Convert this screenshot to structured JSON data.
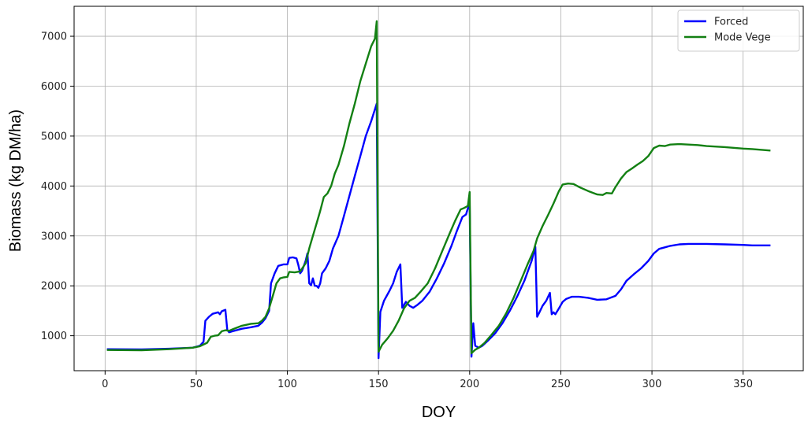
{
  "chart_data": {
    "type": "line",
    "title": "",
    "xlabel": "DOY",
    "ylabel": "Biomass (kg DM/ha)",
    "xlim": [
      -17,
      383
    ],
    "ylim": [
      300,
      7600
    ],
    "x_ticks": [
      0,
      50,
      100,
      150,
      200,
      250,
      300,
      350
    ],
    "y_ticks": [
      1000,
      2000,
      3000,
      4000,
      5000,
      6000,
      7000
    ],
    "grid": true,
    "legend_position": "top-right",
    "series": [
      {
        "name": "Forced",
        "color": "#0000ff",
        "points": [
          [
            1,
            730
          ],
          [
            20,
            725
          ],
          [
            35,
            740
          ],
          [
            48,
            760
          ],
          [
            52,
            800
          ],
          [
            54,
            880
          ],
          [
            55,
            1300
          ],
          [
            57,
            1380
          ],
          [
            59,
            1440
          ],
          [
            62,
            1470
          ],
          [
            63,
            1430
          ],
          [
            64,
            1490
          ],
          [
            66,
            1520
          ],
          [
            67,
            1120
          ],
          [
            68,
            1070
          ],
          [
            70,
            1090
          ],
          [
            75,
            1140
          ],
          [
            80,
            1170
          ],
          [
            84,
            1200
          ],
          [
            86,
            1260
          ],
          [
            88,
            1350
          ],
          [
            90,
            1500
          ],
          [
            91,
            2050
          ],
          [
            93,
            2250
          ],
          [
            95,
            2400
          ],
          [
            98,
            2430
          ],
          [
            100,
            2430
          ],
          [
            101,
            2560
          ],
          [
            103,
            2570
          ],
          [
            105,
            2550
          ],
          [
            106,
            2420
          ],
          [
            107,
            2250
          ],
          [
            108,
            2300
          ],
          [
            110,
            2500
          ],
          [
            111,
            2650
          ],
          [
            112,
            2050
          ],
          [
            113,
            2010
          ],
          [
            114,
            2150
          ],
          [
            115,
            2000
          ],
          [
            116,
            2000
          ],
          [
            117,
            1960
          ],
          [
            118,
            2050
          ],
          [
            119,
            2250
          ],
          [
            121,
            2350
          ],
          [
            123,
            2500
          ],
          [
            125,
            2750
          ],
          [
            128,
            3000
          ],
          [
            131,
            3400
          ],
          [
            134,
            3800
          ],
          [
            137,
            4200
          ],
          [
            140,
            4600
          ],
          [
            143,
            5000
          ],
          [
            146,
            5300
          ],
          [
            149,
            5650
          ],
          [
            150,
            550
          ],
          [
            151,
            1480
          ],
          [
            153,
            1700
          ],
          [
            156,
            1900
          ],
          [
            158,
            2050
          ],
          [
            160,
            2280
          ],
          [
            162,
            2430
          ],
          [
            163,
            1560
          ],
          [
            165,
            1680
          ],
          [
            167,
            1600
          ],
          [
            169,
            1560
          ],
          [
            171,
            1610
          ],
          [
            174,
            1700
          ],
          [
            178,
            1880
          ],
          [
            182,
            2150
          ],
          [
            186,
            2450
          ],
          [
            190,
            2800
          ],
          [
            193,
            3100
          ],
          [
            196,
            3380
          ],
          [
            198,
            3430
          ],
          [
            199,
            3550
          ],
          [
            200,
            3620
          ],
          [
            201,
            580
          ],
          [
            202,
            1250
          ],
          [
            203,
            800
          ],
          [
            205,
            760
          ],
          [
            207,
            800
          ],
          [
            210,
            900
          ],
          [
            214,
            1050
          ],
          [
            218,
            1250
          ],
          [
            222,
            1500
          ],
          [
            226,
            1780
          ],
          [
            230,
            2100
          ],
          [
            234,
            2500
          ],
          [
            236,
            2780
          ],
          [
            237,
            1380
          ],
          [
            238,
            1450
          ],
          [
            240,
            1600
          ],
          [
            242,
            1700
          ],
          [
            244,
            1860
          ],
          [
            245,
            1430
          ],
          [
            246,
            1470
          ],
          [
            247,
            1430
          ],
          [
            249,
            1550
          ],
          [
            251,
            1680
          ],
          [
            253,
            1740
          ],
          [
            256,
            1780
          ],
          [
            260,
            1780
          ],
          [
            265,
            1760
          ],
          [
            270,
            1720
          ],
          [
            275,
            1730
          ],
          [
            280,
            1800
          ],
          [
            283,
            1930
          ],
          [
            286,
            2100
          ],
          [
            290,
            2230
          ],
          [
            294,
            2350
          ],
          [
            298,
            2500
          ],
          [
            301,
            2650
          ],
          [
            304,
            2740
          ],
          [
            307,
            2770
          ],
          [
            310,
            2800
          ],
          [
            315,
            2830
          ],
          [
            320,
            2840
          ],
          [
            330,
            2840
          ],
          [
            340,
            2830
          ],
          [
            350,
            2820
          ],
          [
            355,
            2810
          ],
          [
            365,
            2810
          ]
        ]
      },
      {
        "name": "Mode Vege",
        "color": "#138013",
        "points": [
          [
            1,
            715
          ],
          [
            20,
            710
          ],
          [
            35,
            730
          ],
          [
            48,
            760
          ],
          [
            52,
            790
          ],
          [
            56,
            860
          ],
          [
            58,
            980
          ],
          [
            60,
            1000
          ],
          [
            62,
            1010
          ],
          [
            64,
            1090
          ],
          [
            66,
            1110
          ],
          [
            68,
            1100
          ],
          [
            70,
            1130
          ],
          [
            75,
            1200
          ],
          [
            80,
            1240
          ],
          [
            84,
            1250
          ],
          [
            86,
            1300
          ],
          [
            88,
            1380
          ],
          [
            90,
            1550
          ],
          [
            92,
            1800
          ],
          [
            94,
            2050
          ],
          [
            96,
            2150
          ],
          [
            98,
            2170
          ],
          [
            100,
            2180
          ],
          [
            101,
            2280
          ],
          [
            104,
            2270
          ],
          [
            107,
            2290
          ],
          [
            110,
            2450
          ],
          [
            112,
            2750
          ],
          [
            114,
            3000
          ],
          [
            116,
            3250
          ],
          [
            118,
            3500
          ],
          [
            120,
            3780
          ],
          [
            122,
            3850
          ],
          [
            124,
            4000
          ],
          [
            126,
            4250
          ],
          [
            128,
            4420
          ],
          [
            131,
            4800
          ],
          [
            134,
            5250
          ],
          [
            137,
            5650
          ],
          [
            140,
            6100
          ],
          [
            143,
            6450
          ],
          [
            146,
            6800
          ],
          [
            148,
            6950
          ],
          [
            149,
            7300
          ],
          [
            150,
            680
          ],
          [
            152,
            820
          ],
          [
            155,
            950
          ],
          [
            158,
            1100
          ],
          [
            161,
            1300
          ],
          [
            164,
            1550
          ],
          [
            167,
            1700
          ],
          [
            170,
            1760
          ],
          [
            173,
            1880
          ],
          [
            177,
            2050
          ],
          [
            181,
            2350
          ],
          [
            185,
            2700
          ],
          [
            189,
            3050
          ],
          [
            192,
            3300
          ],
          [
            195,
            3530
          ],
          [
            197,
            3560
          ],
          [
            199,
            3600
          ],
          [
            200,
            3880
          ],
          [
            201,
            650
          ],
          [
            203,
            720
          ],
          [
            205,
            760
          ],
          [
            208,
            850
          ],
          [
            212,
            1020
          ],
          [
            216,
            1200
          ],
          [
            220,
            1450
          ],
          [
            224,
            1750
          ],
          [
            228,
            2100
          ],
          [
            232,
            2450
          ],
          [
            235,
            2700
          ],
          [
            237,
            2950
          ],
          [
            240,
            3200
          ],
          [
            243,
            3420
          ],
          [
            246,
            3650
          ],
          [
            249,
            3900
          ],
          [
            251,
            4030
          ],
          [
            254,
            4050
          ],
          [
            257,
            4040
          ],
          [
            260,
            3980
          ],
          [
            265,
            3900
          ],
          [
            270,
            3830
          ],
          [
            273,
            3820
          ],
          [
            275,
            3860
          ],
          [
            278,
            3850
          ],
          [
            280,
            3980
          ],
          [
            283,
            4150
          ],
          [
            286,
            4280
          ],
          [
            289,
            4350
          ],
          [
            292,
            4430
          ],
          [
            295,
            4500
          ],
          [
            298,
            4600
          ],
          [
            301,
            4760
          ],
          [
            304,
            4810
          ],
          [
            307,
            4800
          ],
          [
            310,
            4830
          ],
          [
            315,
            4840
          ],
          [
            320,
            4830
          ],
          [
            325,
            4820
          ],
          [
            330,
            4800
          ],
          [
            340,
            4780
          ],
          [
            350,
            4750
          ],
          [
            355,
            4740
          ],
          [
            365,
            4710
          ]
        ]
      }
    ]
  }
}
